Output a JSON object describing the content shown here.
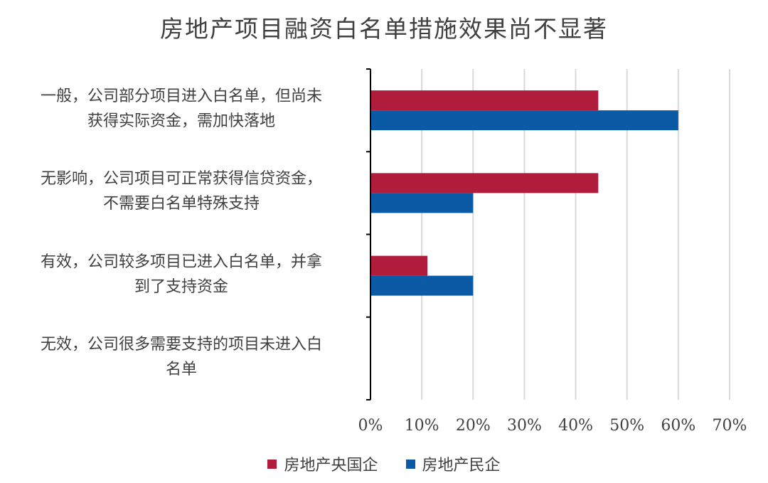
{
  "chart_data": {
    "type": "bar",
    "orientation": "horizontal",
    "title": "房地产项目融资白名单措施效果尚不显著",
    "categories": [
      "一般，公司部分项目进入白名单，但尚未获得实际资金，需加快落地",
      "无影响，公司项目可正常获得信贷资金，不需要白名单特殊支持",
      "有效，公司较多项目已进入白名单，并拿到了支持资金",
      "无效，公司很多需要支持的项目未进入白名单"
    ],
    "category_lines": [
      [
        "一般，公司部分项目进入白名单，但尚未",
        "获得实际资金，需加快落地"
      ],
      [
        "无影响，公司项目可正常获得信贷资金，",
        "不需要白名单特殊支持"
      ],
      [
        "有效，公司较多项目已进入白名单，并拿",
        "到了支持资金"
      ],
      [
        "无效，公司很多需要支持的项目未进入白",
        "名单"
      ]
    ],
    "series": [
      {
        "name": "房地产央国企",
        "color": "#B01C3C",
        "values": [
          44.4,
          44.4,
          11.1,
          0
        ]
      },
      {
        "name": "房地产民企",
        "color": "#0B5AA6",
        "values": [
          60,
          20,
          20,
          0
        ]
      }
    ],
    "xlim": [
      0,
      70
    ],
    "xticks": [
      "0%",
      "10%",
      "20%",
      "30%",
      "40%",
      "50%",
      "60%",
      "70%"
    ],
    "grid": true,
    "legend_position": "bottom"
  }
}
